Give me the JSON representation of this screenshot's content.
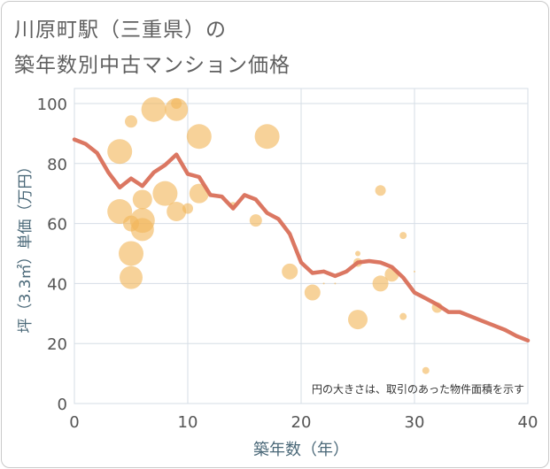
{
  "title": {
    "line1": "川原町駅（三重県）の",
    "line2": "築年数別中古マンション価格"
  },
  "colors": {
    "line": "#d9705a",
    "bubble": "#f2b75b",
    "grid": "#d6dde6",
    "axis_text": "#555555",
    "axis_label": "#4a6878"
  },
  "chart_data": {
    "type": "scatter",
    "xlabel": "築年数（年）",
    "ylabel": "坪（3.3㎡）単価（万円）",
    "xlim": [
      0,
      40
    ],
    "ylim": [
      0,
      105
    ],
    "xticks": [
      0,
      10,
      20,
      30,
      40
    ],
    "yticks": [
      0,
      20,
      40,
      60,
      80,
      100
    ],
    "grid": true,
    "annotation": "円の大きさは、取引のあった物件面積を示す",
    "bubbles": [
      {
        "x": 4,
        "y": 84,
        "size": 14
      },
      {
        "x": 4,
        "y": 64,
        "size": 14
      },
      {
        "x": 5,
        "y": 94,
        "size": 7
      },
      {
        "x": 5,
        "y": 60,
        "size": 9
      },
      {
        "x": 5,
        "y": 50,
        "size": 14
      },
      {
        "x": 5,
        "y": 42,
        "size": 13
      },
      {
        "x": 6,
        "y": 68,
        "size": 11
      },
      {
        "x": 6,
        "y": 61,
        "size": 14
      },
      {
        "x": 6,
        "y": 58,
        "size": 13
      },
      {
        "x": 7,
        "y": 98,
        "size": 14
      },
      {
        "x": 8,
        "y": 70,
        "size": 14
      },
      {
        "x": 9,
        "y": 98,
        "size": 13
      },
      {
        "x": 9,
        "y": 100,
        "size": 6
      },
      {
        "x": 9,
        "y": 64,
        "size": 11
      },
      {
        "x": 10,
        "y": 65,
        "size": 6
      },
      {
        "x": 11,
        "y": 89,
        "size": 14
      },
      {
        "x": 11,
        "y": 70,
        "size": 11
      },
      {
        "x": 14,
        "y": 66,
        "size": 4
      },
      {
        "x": 16,
        "y": 61,
        "size": 7
      },
      {
        "x": 17,
        "y": 89,
        "size": 14
      },
      {
        "x": 19,
        "y": 44,
        "size": 9
      },
      {
        "x": 21,
        "y": 37,
        "size": 9
      },
      {
        "x": 22,
        "y": 40,
        "size": 1
      },
      {
        "x": 23,
        "y": 40,
        "size": 1
      },
      {
        "x": 25,
        "y": 50,
        "size": 3
      },
      {
        "x": 25,
        "y": 47,
        "size": 5
      },
      {
        "x": 25,
        "y": 28,
        "size": 11
      },
      {
        "x": 27,
        "y": 71,
        "size": 6
      },
      {
        "x": 27,
        "y": 40,
        "size": 9
      },
      {
        "x": 28,
        "y": 43,
        "size": 8
      },
      {
        "x": 29,
        "y": 56,
        "size": 4
      },
      {
        "x": 29,
        "y": 29,
        "size": 4
      },
      {
        "x": 30,
        "y": 44,
        "size": 1
      },
      {
        "x": 31,
        "y": 11,
        "size": 4
      },
      {
        "x": 32,
        "y": 32,
        "size": 6
      }
    ],
    "trend": {
      "x": [
        0,
        1,
        2,
        3,
        4,
        5,
        6,
        7,
        8,
        9,
        10,
        11,
        12,
        13,
        14,
        15,
        16,
        17,
        18,
        19,
        20,
        21,
        22,
        23,
        24,
        25,
        26,
        27,
        28,
        29,
        30,
        31,
        32,
        33,
        34,
        35,
        36,
        37,
        38,
        39,
        40
      ],
      "y": [
        88,
        86.5,
        83.5,
        77,
        72,
        75,
        72.5,
        77,
        79.5,
        83,
        76.5,
        75.5,
        69.5,
        69,
        65,
        69.5,
        68,
        63.5,
        61.5,
        56.5,
        47,
        43.5,
        44,
        42.5,
        44,
        47,
        47.5,
        47,
        45.5,
        42,
        37,
        35,
        33,
        30.5,
        30.5,
        29,
        27.5,
        26,
        24.5,
        22.5,
        21
      ]
    }
  }
}
